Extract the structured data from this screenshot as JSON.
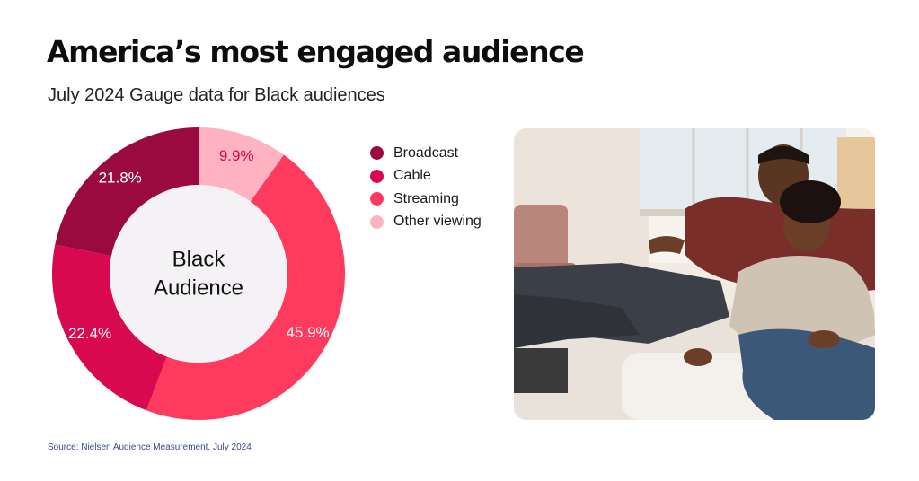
{
  "header": {
    "title": "America’s most engaged audience",
    "subtitle": "July 2024 Gauge data for Black audiences"
  },
  "chart_data": {
    "type": "pie",
    "center_label": [
      "Black",
      "Audience"
    ],
    "categories": [
      "Broadcast",
      "Cable",
      "Streaming",
      "Other viewing"
    ],
    "values": [
      21.8,
      22.4,
      45.9,
      9.9
    ],
    "value_labels": [
      "21.8%",
      "22.4%",
      "45.9%",
      "9.9%"
    ],
    "colors": [
      "#9b0a3f",
      "#d8094f",
      "#ff3a5f",
      "#ffb3c1"
    ],
    "donut": true,
    "start": "top",
    "direction": "clockwise",
    "slice_order": [
      "Other viewing",
      "Streaming",
      "Cable",
      "Broadcast"
    ],
    "legend_position": "right"
  },
  "photo": {
    "description_icon": "couple-on-couch-photo"
  },
  "footer": {
    "source": "Source: Nielsen Audience Measurement, July 2024"
  }
}
